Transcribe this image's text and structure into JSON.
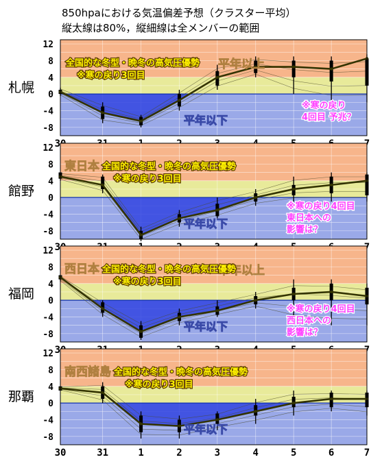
{
  "header": {
    "line1": "850hpaにおける気温偏差予想（クラスター平均）",
    "line2": "縦太線は80%，縦細線は全メンバーの範囲"
  },
  "colors": {
    "band_orange": "#f7b58b",
    "band_yellow": "#e8ea9a",
    "band_blue": "#9aa9e8",
    "below_fill": "#3345e0",
    "mean_line": "#333300"
  },
  "chart_data": [
    {
      "type": "line",
      "panel_label": "札幌",
      "categories": [
        "30",
        "31",
        "1",
        "2",
        "3",
        "4",
        "5",
        "6",
        "7"
      ],
      "yticks": [
        12,
        8,
        4,
        0,
        -4,
        -8
      ],
      "ylim": [
        -10,
        13
      ],
      "series": [
        {
          "values": [
            0.5,
            -4.5,
            -6.5,
            -1.5,
            4,
            6.5,
            6.5,
            6,
            8.5
          ]
        }
      ],
      "range80": [
        [
          0,
          1
        ],
        [
          -6,
          -3
        ],
        [
          -7.5,
          -5.5
        ],
        [
          -3,
          0
        ],
        [
          2,
          5.5
        ],
        [
          5,
          8
        ],
        [
          4,
          8
        ],
        [
          3,
          8
        ],
        [
          2,
          8.5
        ]
      ],
      "rangeAll": [
        [
          -0.5,
          1.5
        ],
        [
          -7,
          -2
        ],
        [
          -8,
          -5
        ],
        [
          -4,
          1
        ],
        [
          1,
          7
        ],
        [
          4,
          9
        ],
        [
          0,
          9
        ],
        [
          -2,
          9
        ],
        [
          -2,
          9.5
        ]
      ],
      "annotations": {
        "region_prefix": "",
        "winter": "全国的な冬型・晩冬の高気圧優勢",
        "return3": "※寒の戻り3回目",
        "normal_below": "平年以下",
        "above_ghost": "平年以上",
        "note_lines": [
          "※寒の戻り",
          "4回目 予兆？"
        ]
      }
    },
    {
      "type": "line",
      "panel_label": "館野",
      "categories": [
        "30",
        "31",
        "1",
        "2",
        "3",
        "4",
        "5",
        "6",
        "7"
      ],
      "yticks": [
        12,
        8,
        4,
        0,
        -4,
        -8
      ],
      "ylim": [
        -10,
        13
      ],
      "series": [
        {
          "values": [
            5,
            3,
            -9,
            -5,
            -3,
            0,
            2,
            3,
            4
          ]
        }
      ],
      "range80": [
        [
          4.5,
          6
        ],
        [
          2,
          5
        ],
        [
          -10,
          -8
        ],
        [
          -6,
          -4
        ],
        [
          -4.5,
          -1.5
        ],
        [
          -1,
          1
        ],
        [
          0.5,
          3
        ],
        [
          1,
          5
        ],
        [
          0.5,
          5.5
        ]
      ],
      "rangeAll": [
        [
          4,
          6
        ],
        [
          1,
          5.5
        ],
        [
          -10.5,
          -7
        ],
        [
          -7,
          -3
        ],
        [
          -5,
          0
        ],
        [
          -2,
          2
        ],
        [
          -1,
          5
        ],
        [
          -1,
          6
        ],
        [
          -1,
          6
        ]
      ],
      "annotations": {
        "region_prefix": "東日本",
        "winter": "全国的な冬型・晩冬の高気圧優勢",
        "return3": "※寒の戻り3回目",
        "normal_below": "平年以下",
        "above_ghost": "",
        "note_lines": [
          "※寒の戻り4回目",
          "東日本への",
          "影響は？"
        ]
      }
    },
    {
      "type": "line",
      "panel_label": "福岡",
      "categories": [
        "30",
        "31",
        "1",
        "2",
        "3",
        "4",
        "5",
        "6",
        "7"
      ],
      "yticks": [
        12,
        8,
        4,
        0,
        -4,
        -8
      ],
      "ylim": [
        -10,
        13
      ],
      "series": [
        {
          "values": [
            5.5,
            -2,
            -7.5,
            -4,
            -2.5,
            0,
            1.5,
            2,
            1
          ]
        }
      ],
      "range80": [
        [
          5,
          6
        ],
        [
          -3,
          -0.5
        ],
        [
          -9,
          -6
        ],
        [
          -5,
          -3
        ],
        [
          -3.5,
          -1.5
        ],
        [
          -1,
          1
        ],
        [
          0,
          3
        ],
        [
          0,
          4
        ],
        [
          -1,
          3
        ]
      ],
      "rangeAll": [
        [
          4.5,
          6
        ],
        [
          -4,
          0
        ],
        [
          -9.5,
          -5
        ],
        [
          -6,
          -2
        ],
        [
          -4,
          0
        ],
        [
          -2,
          2
        ],
        [
          -5,
          5
        ],
        [
          -6,
          5
        ],
        [
          -6,
          4
        ]
      ],
      "annotations": {
        "region_prefix": "西日本",
        "winter": "全国的な冬型・晩冬の高気圧優勢",
        "return3": "※寒の戻り3回目",
        "normal_below": "平年以下",
        "above_ghost": "平年以上",
        "note_lines": [
          "※寒の戻り4回目",
          "西日本への",
          "影響は？"
        ]
      }
    },
    {
      "type": "line",
      "panel_label": "那覇",
      "categories": [
        "30",
        "31",
        "1",
        "2",
        "3",
        "4",
        "5",
        "6",
        "7"
      ],
      "yticks": [
        12,
        8,
        4,
        0,
        -4,
        -8
      ],
      "ylim": [
        -10,
        13
      ],
      "series": [
        {
          "values": [
            3.5,
            2.5,
            -5,
            -5.5,
            -4,
            -2,
            0,
            1,
            1
          ]
        }
      ],
      "range80": [
        [
          3,
          4
        ],
        [
          1,
          4
        ],
        [
          -7,
          -3
        ],
        [
          -7,
          -4
        ],
        [
          -5,
          -2.5
        ],
        [
          -3,
          -0.5
        ],
        [
          -1,
          1.5
        ],
        [
          -1,
          2.5
        ],
        [
          -1,
          2.5
        ]
      ],
      "rangeAll": [
        [
          3,
          4
        ],
        [
          0,
          5
        ],
        [
          -8.5,
          -2
        ],
        [
          -8.5,
          -3
        ],
        [
          -6.5,
          -2
        ],
        [
          -5,
          1
        ],
        [
          -3,
          3
        ],
        [
          -2,
          3
        ],
        [
          -3,
          3
        ]
      ],
      "annotations": {
        "region_prefix": "南西諸島",
        "winter": "全国的な冬型・晩冬の高気圧優勢",
        "return3": "※寒の戻り3回目",
        "normal_below": "平年以下",
        "above_ghost": "",
        "note_lines": []
      }
    }
  ]
}
